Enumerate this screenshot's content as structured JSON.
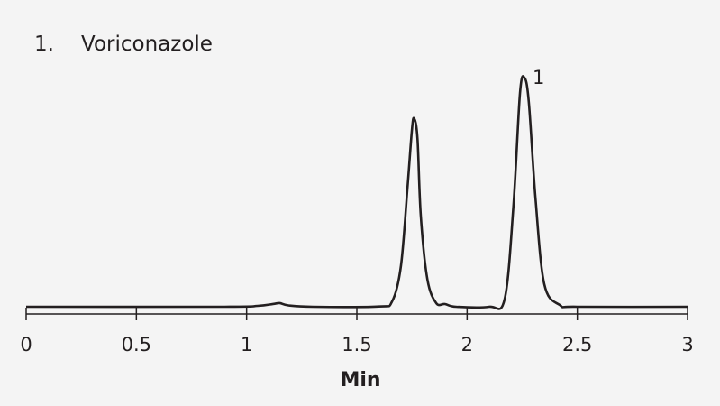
{
  "legend": [
    {
      "number": "1.",
      "name": "Voriconazole"
    }
  ],
  "chart_data": {
    "type": "line",
    "xlabel": "Min",
    "ylabel": "",
    "xlim": [
      0,
      3
    ],
    "x_ticks": [
      "0",
      "0.5",
      "1",
      "1.5",
      "2",
      "2.5",
      "3"
    ],
    "grid": false,
    "series": [
      {
        "x": [
          0,
          0.9,
          1.05,
          1.12,
          1.15,
          1.19,
          1.3,
          1.6,
          1.66,
          1.7,
          1.73,
          1.75,
          1.76,
          1.775,
          1.79,
          1.82,
          1.86,
          1.9,
          1.95,
          2.1,
          2.17,
          2.21,
          2.24,
          2.26,
          2.28,
          2.31,
          2.35,
          2.42,
          2.5,
          3.0
        ],
        "y": [
          0,
          0,
          1,
          3,
          4,
          1.5,
          0,
          0.3,
          6,
          45,
          132,
          195,
          207,
          185,
          100,
          30,
          4,
          3,
          0,
          0,
          8,
          110,
          235,
          252,
          225,
          120,
          25,
          2,
          0,
          0
        ]
      }
    ],
    "annotations": [
      {
        "text": "1",
        "x": 2.26,
        "y": 252
      }
    ]
  }
}
